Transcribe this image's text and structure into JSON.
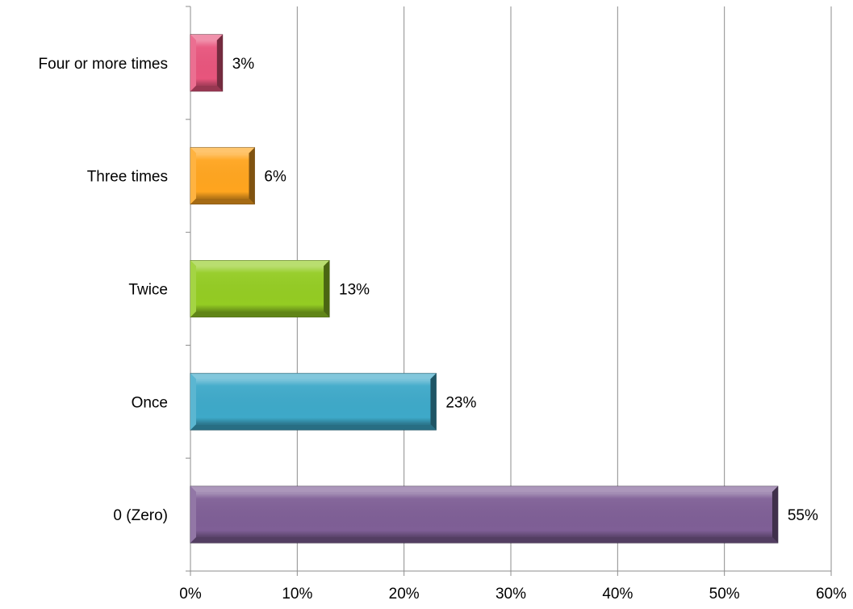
{
  "chart_data": {
    "type": "bar",
    "orientation": "horizontal",
    "categories": [
      "Four or more times",
      "Three times",
      "Twice",
      "Once",
      "0 (Zero)"
    ],
    "values": [
      3,
      6,
      13,
      23,
      55
    ],
    "data_labels": [
      "3%",
      "6%",
      "13%",
      "23%",
      "55%"
    ],
    "colors": [
      "#e8557d",
      "#ffa51f",
      "#94cc23",
      "#3ea9c9",
      "#7f5f96"
    ],
    "xlim": [
      0,
      60
    ],
    "x_ticks": [
      0,
      10,
      20,
      30,
      40,
      50,
      60
    ],
    "x_tick_labels": [
      "0%",
      "10%",
      "20%",
      "30%",
      "40%",
      "50%",
      "60%"
    ],
    "grid": "vertical",
    "legend": "none",
    "title": "",
    "xlabel": "",
    "ylabel": ""
  }
}
